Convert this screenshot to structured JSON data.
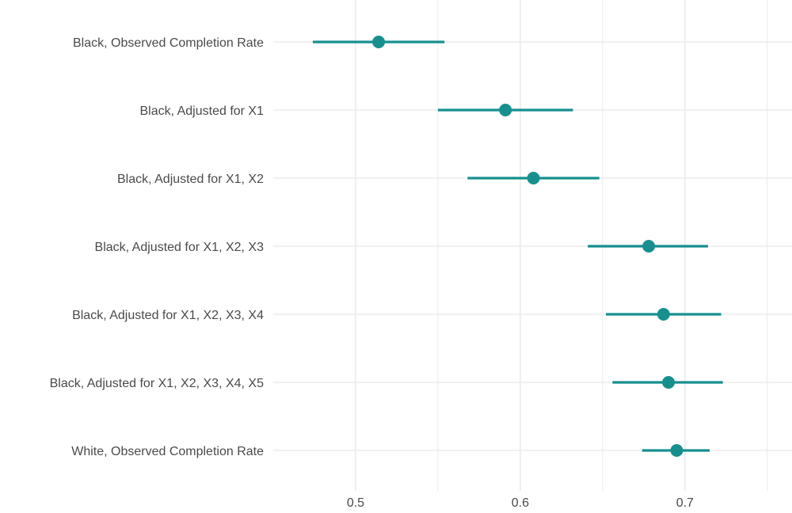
{
  "chart_data": {
    "type": "scatter",
    "subtype": "point-range",
    "title": "",
    "xlabel": "",
    "ylabel": "",
    "xlim": [
      0.45,
      0.765
    ],
    "x_ticks": [
      0.5,
      0.6,
      0.7
    ],
    "x_tick_labels": [
      "0.5",
      "0.6",
      "0.7"
    ],
    "grid": true,
    "legend": "none",
    "point_color": "#178f8f",
    "grid_color": "#ebebeb",
    "label_color": "#4a4a4a",
    "categories": [
      "Black, Observed Completion Rate",
      "Black, Adjusted for X1",
      "Black, Adjusted for X1, X2",
      "Black, Adjusted for X1, X2, X3",
      "Black, Adjusted for X1, X2, X3, X4",
      "Black, Adjusted for X1, X2, X3, X4, X5",
      "White, Observed Completion Rate"
    ],
    "estimates": [
      0.514,
      0.591,
      0.608,
      0.678,
      0.687,
      0.69,
      0.695
    ],
    "lower": [
      0.474,
      0.55,
      0.568,
      0.641,
      0.652,
      0.656,
      0.674
    ],
    "upper": [
      0.554,
      0.632,
      0.648,
      0.714,
      0.722,
      0.723,
      0.715
    ]
  }
}
